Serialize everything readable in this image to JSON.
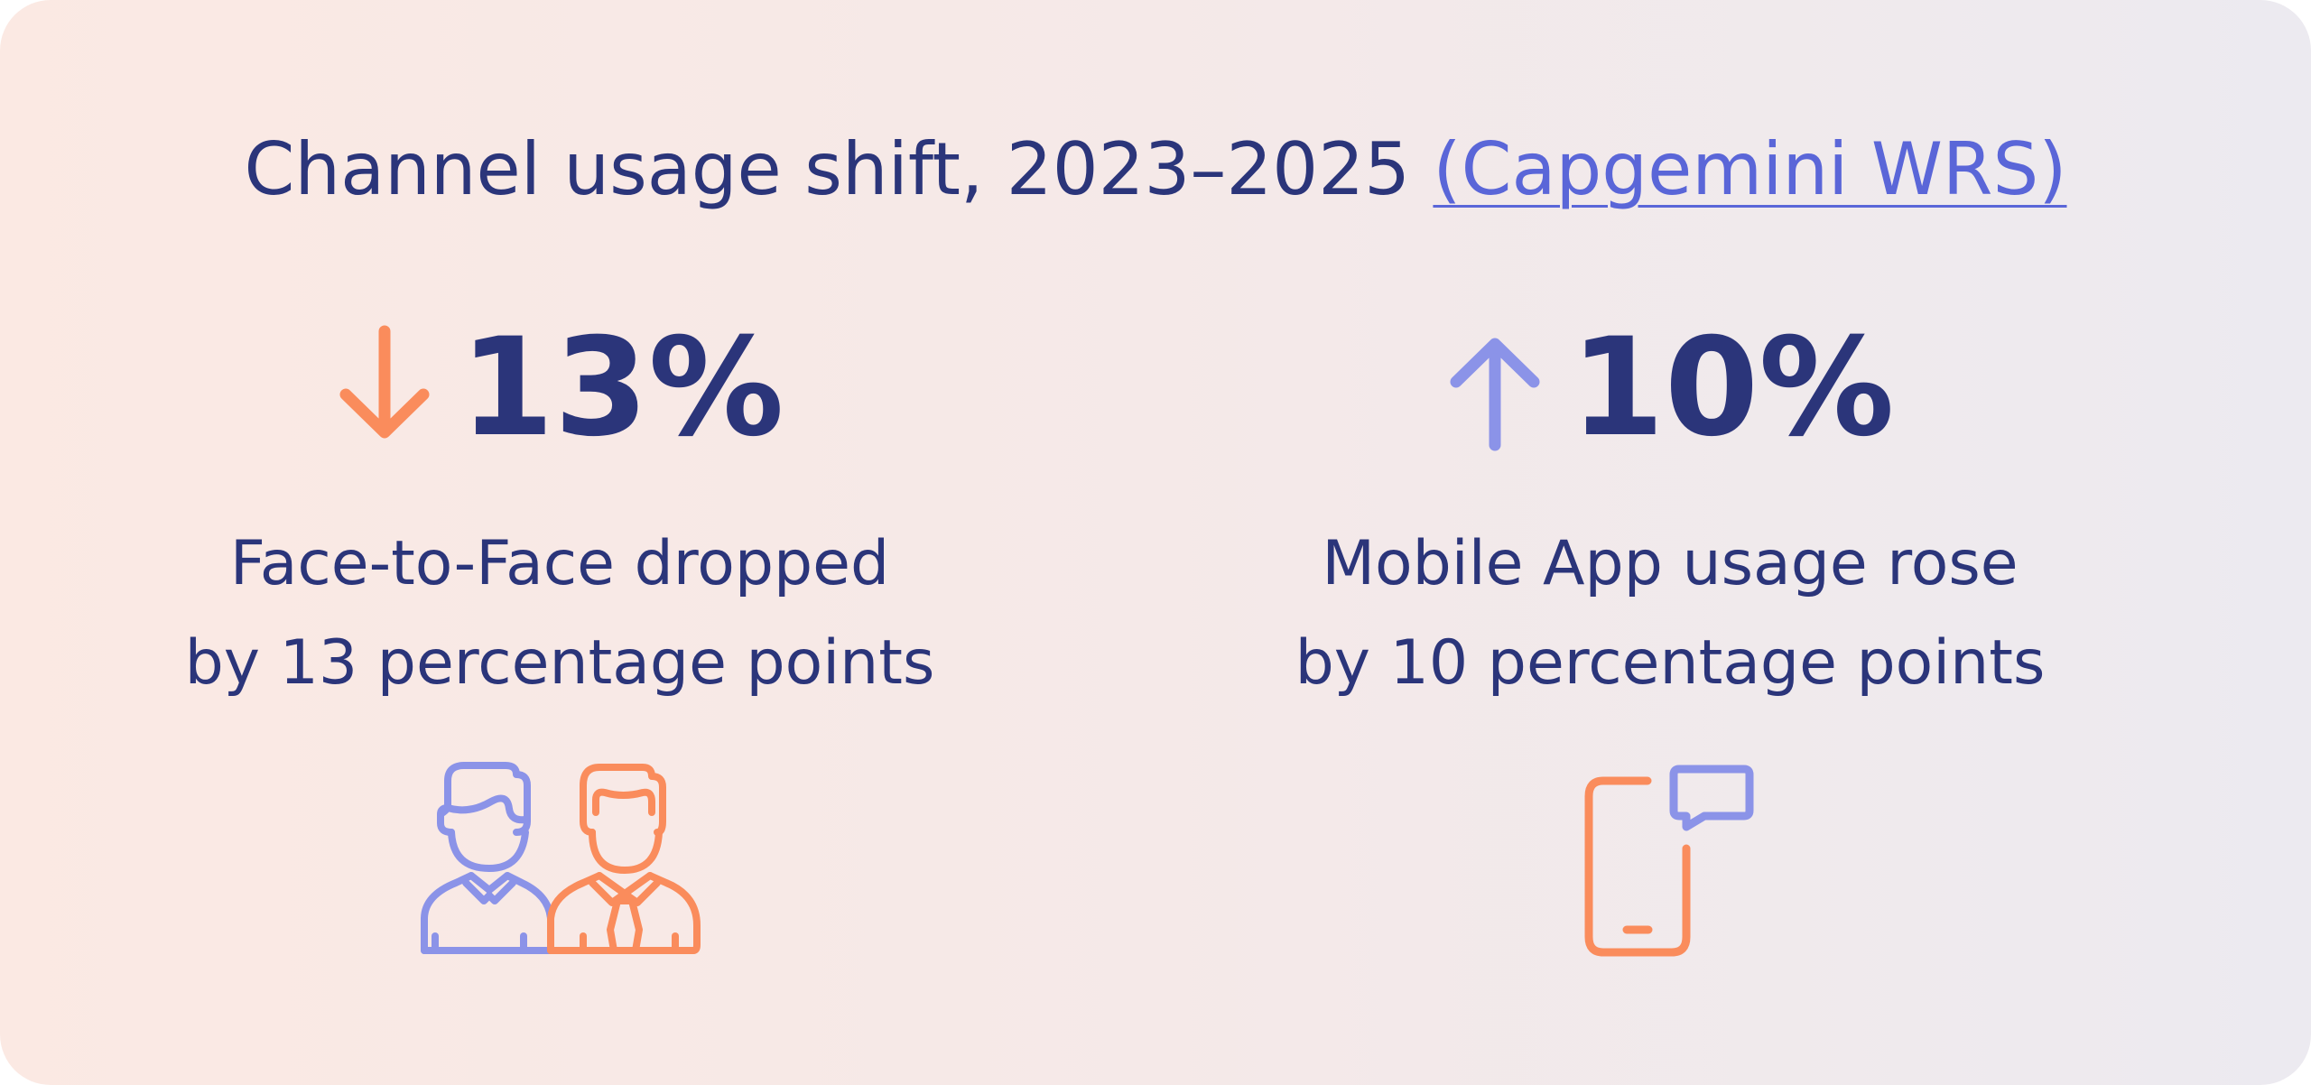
{
  "header": {
    "title": "Channel usage shift, 2023–2025",
    "source_link": "(Capgemini WRS)"
  },
  "stats": [
    {
      "direction": "down",
      "value": "13%",
      "caption_line1": "Face-to-Face dropped",
      "caption_line2": "by 13 percentage points",
      "icon": "people-icon",
      "arrow_color": "#fa8c5c"
    },
    {
      "direction": "up",
      "value": "10%",
      "caption_line1": "Mobile App usage rose",
      "caption_line2": "by 10 percentage points",
      "icon": "mobile-chat-icon",
      "arrow_color": "#8b93e8"
    }
  ],
  "colors": {
    "text": "#2b357a",
    "link": "#5a66d8",
    "orange": "#fa8c5c",
    "purple": "#8b93e8"
  }
}
